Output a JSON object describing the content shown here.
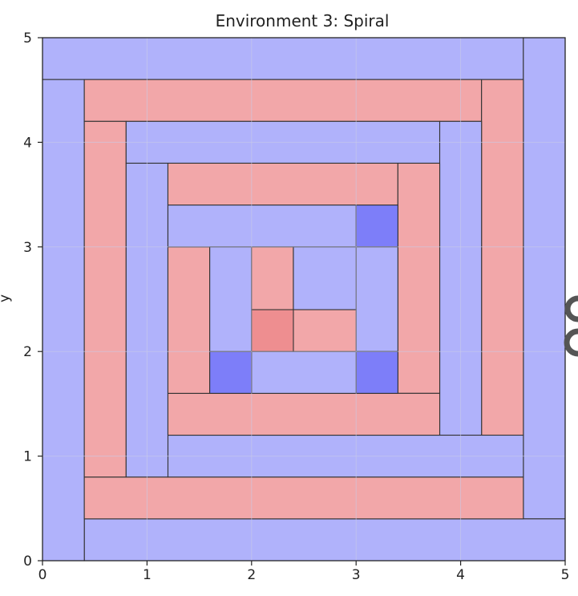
{
  "chart_data": {
    "type": "rect-map",
    "title": "Environment 3: Spiral",
    "xlabel": "",
    "ylabel": "y",
    "xlim": [
      0,
      5
    ],
    "ylim": [
      0,
      5
    ],
    "xticks": [
      "0",
      "1",
      "2",
      "3",
      "4",
      "5"
    ],
    "yticks": [
      "0",
      "1",
      "2",
      "3",
      "4",
      "5"
    ],
    "grid": true,
    "colors": {
      "blue": "#b0b2fb",
      "red": "#f2a7a9",
      "dark_blue": "#7d7ef9",
      "dark_red": "#ee8e90",
      "edge": "#333333",
      "grid": "#c9cbe8"
    },
    "rects": [
      {
        "x0": 0.0,
        "y0": 4.6,
        "x1": 4.6,
        "y1": 5.0,
        "color": "blue"
      },
      {
        "x0": 4.6,
        "y0": 0.4,
        "x1": 5.0,
        "y1": 5.0,
        "color": "blue"
      },
      {
        "x0": 0.4,
        "y0": 0.0,
        "x1": 5.0,
        "y1": 0.4,
        "color": "blue"
      },
      {
        "x0": 0.0,
        "y0": 0.0,
        "x1": 0.4,
        "y1": 4.6,
        "color": "blue"
      },
      {
        "x0": 0.4,
        "y0": 4.2,
        "x1": 4.2,
        "y1": 4.6,
        "color": "red"
      },
      {
        "x0": 4.2,
        "y0": 1.2,
        "x1": 4.6,
        "y1": 4.6,
        "color": "red"
      },
      {
        "x0": 0.4,
        "y0": 0.4,
        "x1": 4.6,
        "y1": 0.8,
        "color": "red"
      },
      {
        "x0": 0.4,
        "y0": 0.8,
        "x1": 0.8,
        "y1": 4.2,
        "color": "red"
      },
      {
        "x0": 0.8,
        "y0": 3.8,
        "x1": 3.8,
        "y1": 4.2,
        "color": "blue"
      },
      {
        "x0": 3.8,
        "y0": 1.2,
        "x1": 4.2,
        "y1": 4.2,
        "color": "blue"
      },
      {
        "x0": 1.2,
        "y0": 0.8,
        "x1": 4.6,
        "y1": 1.2,
        "color": "blue"
      },
      {
        "x0": 0.8,
        "y0": 0.8,
        "x1": 1.2,
        "y1": 3.8,
        "color": "blue"
      },
      {
        "x0": 1.2,
        "y0": 3.4,
        "x1": 3.4,
        "y1": 3.8,
        "color": "red"
      },
      {
        "x0": 3.4,
        "y0": 1.6,
        "x1": 3.8,
        "y1": 3.8,
        "color": "red"
      },
      {
        "x0": 1.2,
        "y0": 1.2,
        "x1": 3.8,
        "y1": 1.6,
        "color": "red"
      },
      {
        "x0": 1.2,
        "y0": 1.6,
        "x1": 1.6,
        "y1": 3.0,
        "color": "red"
      },
      {
        "x0": 1.2,
        "y0": 3.0,
        "x1": 3.0,
        "y1": 3.4,
        "color": "blue"
      },
      {
        "x0": 3.0,
        "y0": 3.0,
        "x1": 3.4,
        "y1": 3.4,
        "color": "dark_blue"
      },
      {
        "x0": 3.0,
        "y0": 2.0,
        "x1": 3.4,
        "y1": 3.0,
        "color": "blue"
      },
      {
        "x0": 3.0,
        "y0": 1.6,
        "x1": 3.4,
        "y1": 2.0,
        "color": "dark_blue"
      },
      {
        "x0": 2.0,
        "y0": 1.6,
        "x1": 3.0,
        "y1": 2.0,
        "color": "blue"
      },
      {
        "x0": 1.6,
        "y0": 1.6,
        "x1": 2.0,
        "y1": 2.0,
        "color": "dark_blue"
      },
      {
        "x0": 1.6,
        "y0": 2.0,
        "x1": 2.0,
        "y1": 3.0,
        "color": "blue"
      },
      {
        "x0": 2.0,
        "y0": 2.4,
        "x1": 2.4,
        "y1": 3.0,
        "color": "red"
      },
      {
        "x0": 2.4,
        "y0": 2.4,
        "x1": 3.0,
        "y1": 3.0,
        "color": "blue"
      },
      {
        "x0": 2.4,
        "y0": 2.0,
        "x1": 3.0,
        "y1": 2.4,
        "color": "red"
      },
      {
        "x0": 2.0,
        "y0": 2.0,
        "x1": 2.4,
        "y1": 2.4,
        "color": "dark_red"
      }
    ]
  }
}
